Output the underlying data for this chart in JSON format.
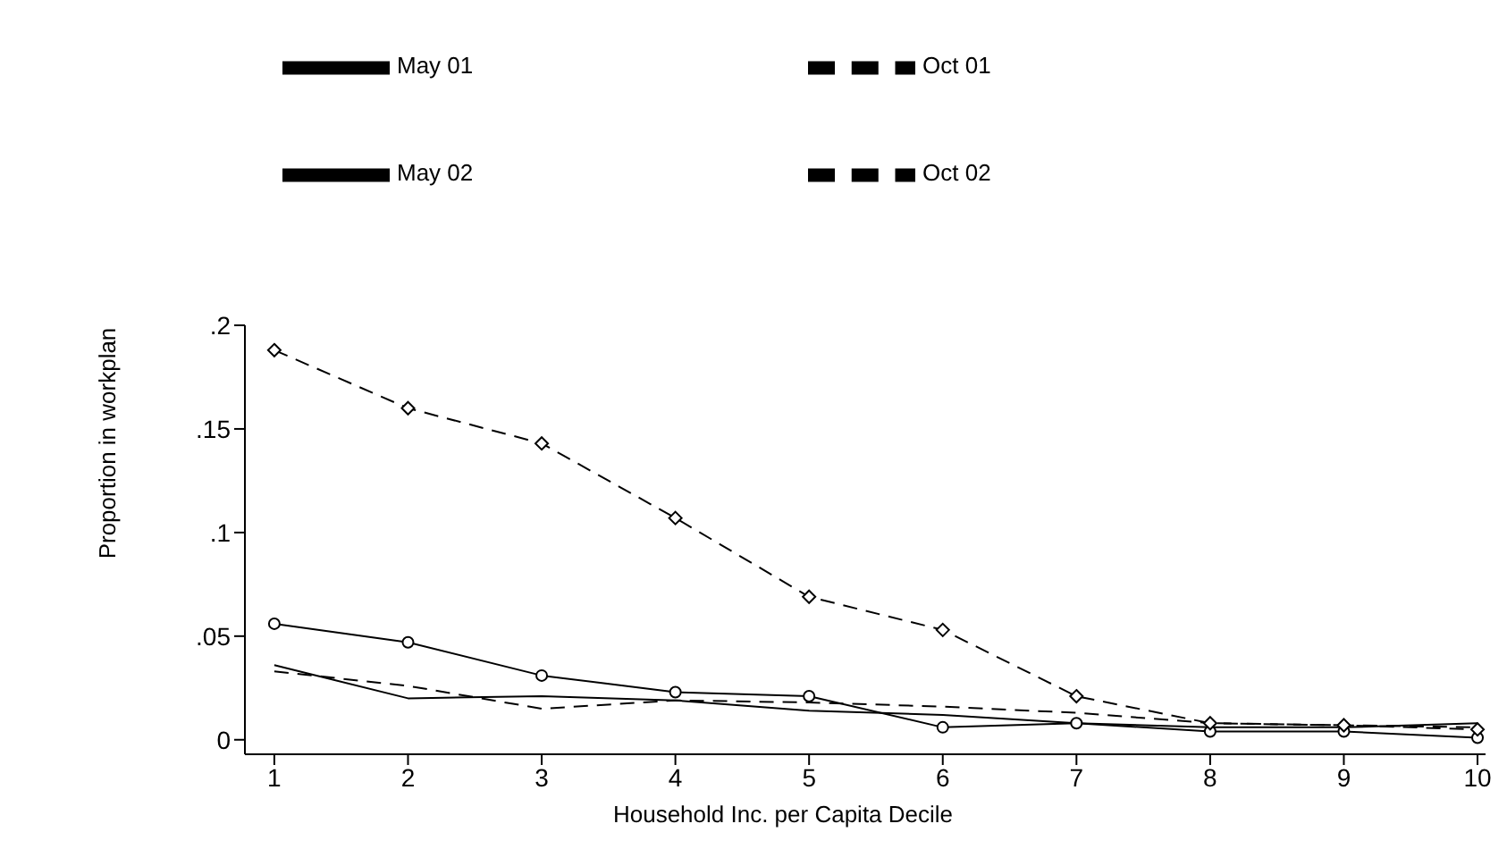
{
  "chart_data": {
    "type": "line",
    "xlabel": "Household Inc. per Capita Decile",
    "ylabel": "Proportion in workplan",
    "x": [
      1,
      2,
      3,
      4,
      5,
      6,
      7,
      8,
      9,
      10
    ],
    "series": [
      {
        "name": "May 01",
        "color": "#000000",
        "line_style": "solid",
        "marker": "none",
        "values": [
          0.036,
          0.02,
          0.021,
          0.019,
          0.014,
          0.012,
          0.008,
          0.006,
          0.006,
          0.008
        ]
      },
      {
        "name": "May 02",
        "color": "#000000",
        "line_style": "solid",
        "marker": "circle",
        "values": [
          0.056,
          0.047,
          0.031,
          0.023,
          0.021,
          0.006,
          0.008,
          0.004,
          0.004,
          0.001
        ]
      },
      {
        "name": "Oct 01",
        "color": "#000000",
        "line_style": "dashed",
        "marker": "none",
        "values": [
          0.033,
          0.026,
          0.015,
          0.019,
          0.018,
          0.016,
          0.013,
          0.008,
          0.007,
          0.006
        ]
      },
      {
        "name": "Oct 02",
        "color": "#000000",
        "line_style": "dashed",
        "marker": "diamond",
        "values": [
          0.188,
          0.16,
          0.143,
          0.107,
          0.069,
          0.053,
          0.021,
          0.008,
          0.007,
          0.005
        ]
      }
    ],
    "xlim": [
      0.78,
      10.06
    ],
    "xticks": [
      1,
      2,
      3,
      4,
      5,
      6,
      7,
      8,
      9,
      10
    ],
    "ylim": [
      -0.007,
      0.2
    ],
    "yticks": [
      {
        "value": 0,
        "label": "0"
      },
      {
        "value": 0.05,
        "label": ".05"
      },
      {
        "value": 0.1,
        "label": ".1"
      },
      {
        "value": 0.15,
        "label": ".15"
      },
      {
        "value": 0.2,
        "label": ".2"
      }
    ],
    "grid": false,
    "legend": "top"
  }
}
